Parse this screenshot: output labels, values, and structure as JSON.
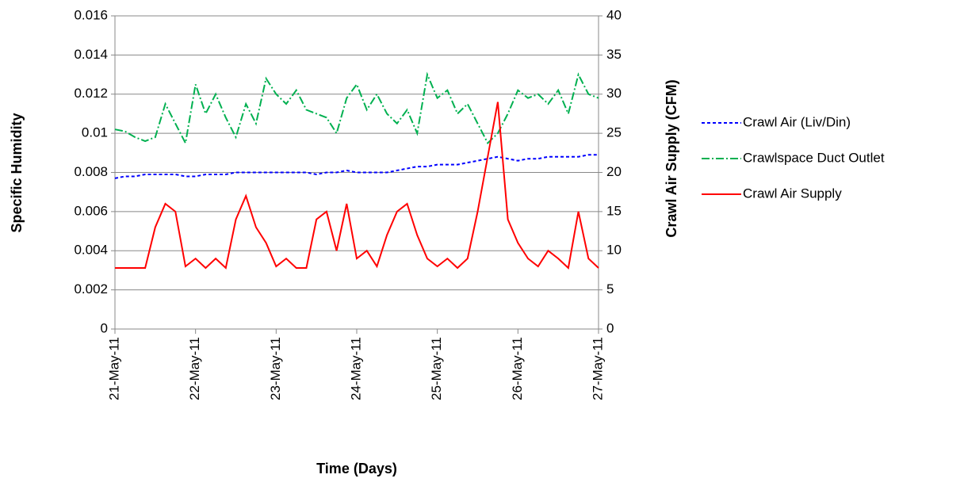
{
  "chart_data": {
    "type": "line",
    "xlabel": "Time (Days)",
    "ylabel": "Specific Humidity",
    "y2label": "Crawl Air Supply (CFM)",
    "x": [
      0,
      0.125,
      0.25,
      0.375,
      0.5,
      0.625,
      0.75,
      0.875,
      1,
      1.125,
      1.25,
      1.375,
      1.5,
      1.625,
      1.75,
      1.875,
      2,
      2.125,
      2.25,
      2.375,
      2.5,
      2.625,
      2.75,
      2.875,
      3,
      3.125,
      3.25,
      3.375,
      3.5,
      3.625,
      3.75,
      3.875,
      4,
      4.125,
      4.25,
      4.375,
      4.5,
      4.625,
      4.75,
      4.875,
      5,
      5.125,
      5.25,
      5.375,
      5.5,
      5.625,
      5.75,
      5.875,
      6
    ],
    "xlim": [
      0,
      6
    ],
    "xticks": [
      {
        "value": 0,
        "label": "21-May-11"
      },
      {
        "value": 1,
        "label": "22-May-11"
      },
      {
        "value": 2,
        "label": "23-May-11"
      },
      {
        "value": 3,
        "label": "24-May-11"
      },
      {
        "value": 4,
        "label": "25-May-11"
      },
      {
        "value": 5,
        "label": "26-May-11"
      },
      {
        "value": 6,
        "label": "27-May-11"
      }
    ],
    "ylim": [
      0,
      0.016
    ],
    "yticks": [
      0,
      0.002,
      0.004,
      0.006,
      0.008,
      0.01,
      0.012,
      0.014,
      0.016
    ],
    "y2lim": [
      0,
      40
    ],
    "y2ticks": [
      0,
      5,
      10,
      15,
      20,
      25,
      30,
      35,
      40
    ],
    "grid": true,
    "legend": "right",
    "series": [
      {
        "name": "Crawl Air (Liv/Din)",
        "color": "#0000ff",
        "dash": "4,3",
        "values": [
          0.0077,
          0.0078,
          0.0078,
          0.0079,
          0.0079,
          0.0079,
          0.0079,
          0.0078,
          0.0078,
          0.0079,
          0.0079,
          0.0079,
          0.008,
          0.008,
          0.008,
          0.008,
          0.008,
          0.008,
          0.008,
          0.008,
          0.0079,
          0.008,
          0.008,
          0.0081,
          0.008,
          0.008,
          0.008,
          0.008,
          0.0081,
          0.0082,
          0.0083,
          0.0083,
          0.0084,
          0.0084,
          0.0084,
          0.0085,
          0.0086,
          0.0087,
          0.0088,
          0.0087,
          0.0086,
          0.0087,
          0.0087,
          0.0088,
          0.0088,
          0.0088,
          0.0088,
          0.0089,
          0.0089
        ]
      },
      {
        "name": "Crawlspace Duct Outlet",
        "color": "#00b050",
        "dash": "10,3,2,3",
        "values": [
          0.0102,
          0.0101,
          0.0098,
          0.0096,
          0.0098,
          0.0115,
          0.0105,
          0.0095,
          0.0125,
          0.011,
          0.012,
          0.0108,
          0.0098,
          0.0115,
          0.0105,
          0.0128,
          0.012,
          0.0115,
          0.0122,
          0.0112,
          0.011,
          0.0108,
          0.01,
          0.0118,
          0.0125,
          0.0112,
          0.012,
          0.011,
          0.0105,
          0.0112,
          0.01,
          0.013,
          0.0118,
          0.0122,
          0.011,
          0.0115,
          0.0105,
          0.0095,
          0.01,
          0.011,
          0.0122,
          0.0118,
          0.012,
          0.0115,
          0.0122,
          0.011,
          0.013,
          0.012,
          0.0118
        ]
      },
      {
        "name": "Crawl Air Supply",
        "color": "#ff0000",
        "axis": "y2",
        "values": [
          7.8,
          7.8,
          7.8,
          7.8,
          13,
          16,
          15,
          8,
          9,
          7.8,
          9,
          7.8,
          14,
          17,
          13,
          11,
          8,
          9,
          7.8,
          7.8,
          14,
          15,
          10,
          16,
          9,
          10,
          8,
          12,
          15,
          16,
          12,
          9,
          8,
          9,
          7.8,
          9,
          15,
          22,
          29,
          14,
          11,
          9,
          8,
          10,
          9,
          7.8,
          15,
          9,
          7.8
        ]
      }
    ]
  }
}
